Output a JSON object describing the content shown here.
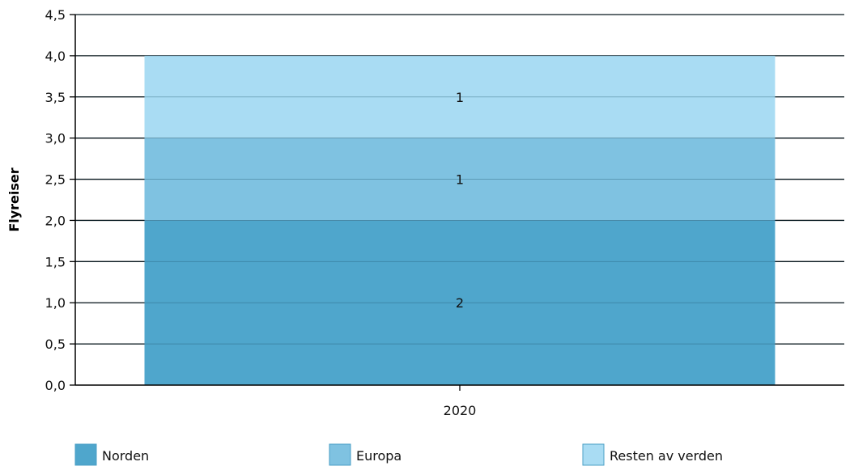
{
  "chart_data": {
    "type": "bar",
    "stacked": true,
    "categories": [
      "2020"
    ],
    "series": [
      {
        "name": "Norden",
        "values": [
          2
        ],
        "color": "#4fa6cc"
      },
      {
        "name": "Europa",
        "values": [
          1
        ],
        "color": "#7fc2e1"
      },
      {
        "name": "Resten av verden",
        "values": [
          1
        ],
        "color": "#a9dcf3"
      }
    ],
    "data_labels": [
      [
        "2"
      ],
      [
        "1"
      ],
      [
        "1"
      ]
    ],
    "ylabel": "Flyreiser",
    "xlabel": "",
    "ylim": [
      0,
      4.5
    ],
    "yticks": [
      "0,0",
      "0,5",
      "1,0",
      "1,5",
      "2,0",
      "2,5",
      "3,0",
      "3,5",
      "4,0",
      "4,5"
    ],
    "grid": true,
    "legend_position": "bottom"
  }
}
